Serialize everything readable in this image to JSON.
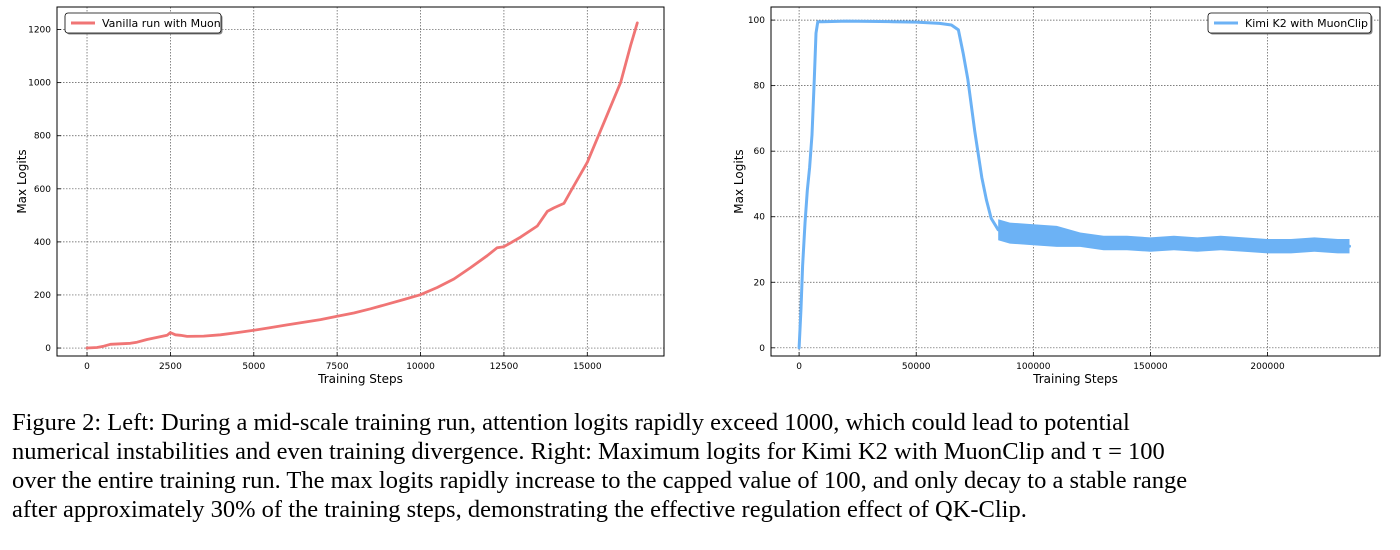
{
  "caption": {
    "lines": [
      "Figure 2: Left: During a mid-scale training run, attention logits rapidly exceed 1000, which could lead to potential",
      "numerical instabilities and even training divergence. Right: Maximum logits for Kimi K2 with MuonClip and τ = 100",
      "over the entire training run. The max logits rapidly increase to the capped value of 100, and only decay to a stable range",
      "after approximately 30% of the training steps, demonstrating the effective regulation effect of QK-Clip."
    ]
  },
  "chart_data": [
    {
      "type": "line",
      "xlabel": "Training Steps",
      "ylabel": "Max Logits",
      "xlim": [
        -900,
        17300
      ],
      "ylim": [
        -30,
        1285
      ],
      "xticks": [
        0,
        2500,
        5000,
        7500,
        10000,
        12500,
        15000
      ],
      "yticks": [
        0,
        200,
        400,
        600,
        800,
        1000,
        1200
      ],
      "grid": true,
      "legend_position": "top-left",
      "series": [
        {
          "name": "Vanilla run with Muon",
          "color": "#f07575",
          "x": [
            0,
            300,
            500,
            700,
            1000,
            1300,
            1500,
            1800,
            2100,
            2400,
            2500,
            2650,
            2800,
            3000,
            3500,
            4000,
            4500,
            5000,
            5500,
            6000,
            6500,
            7000,
            7500,
            8000,
            8500,
            9000,
            9500,
            10000,
            10500,
            11000,
            11500,
            12000,
            12300,
            12500,
            13000,
            13500,
            13800,
            14000,
            14300,
            14500,
            15000,
            15500,
            16000,
            16300,
            16500
          ],
          "y": [
            0,
            2,
            7,
            14,
            16,
            18,
            22,
            32,
            40,
            48,
            58,
            50,
            48,
            44,
            45,
            50,
            58,
            67,
            77,
            87,
            97,
            107,
            120,
            132,
            148,
            165,
            183,
            201,
            228,
            260,
            303,
            348,
            378,
            382,
            418,
            460,
            515,
            528,
            545,
            590,
            700,
            850,
            1000,
            1140,
            1225
          ]
        }
      ]
    },
    {
      "type": "line",
      "xlabel": "Training Steps",
      "ylabel": "Max Logits",
      "xlim": [
        -12000,
        248000
      ],
      "ylim": [
        -2.5,
        104
      ],
      "xticks": [
        0,
        50000,
        100000,
        150000,
        200000
      ],
      "yticks": [
        0,
        20,
        40,
        60,
        80,
        100
      ],
      "grid": true,
      "legend_position": "top-right",
      "series": [
        {
          "name": "Kimi K2 with MuonClip",
          "color": "#6cb2f5",
          "x": [
            0,
            800,
            1500,
            2500,
            3500,
            4500,
            5500,
            6500,
            7200,
            8000,
            10000,
            20000,
            30000,
            40000,
            50000,
            60000,
            65000,
            68000,
            70000,
            72000,
            75000,
            78000,
            80000,
            82000,
            85000,
            90000,
            100000,
            110000,
            120000,
            130000,
            140000,
            150000,
            160000,
            170000,
            180000,
            190000,
            200000,
            210000,
            220000,
            230000,
            235000
          ],
          "y": [
            0,
            12,
            25,
            38,
            48,
            55,
            65,
            82,
            96,
            99.5,
            99.5,
            99.7,
            99.6,
            99.5,
            99.4,
            99.0,
            98.5,
            97.0,
            90.0,
            82.0,
            66.0,
            52.0,
            45.0,
            39.5,
            36.0,
            35.0,
            34.5,
            34.0,
            33.0,
            32.0,
            32.0,
            31.5,
            32.0,
            31.5,
            32.0,
            31.5,
            31.0,
            31.0,
            31.5,
            31.0,
            31.0
          ]
        }
      ]
    }
  ]
}
